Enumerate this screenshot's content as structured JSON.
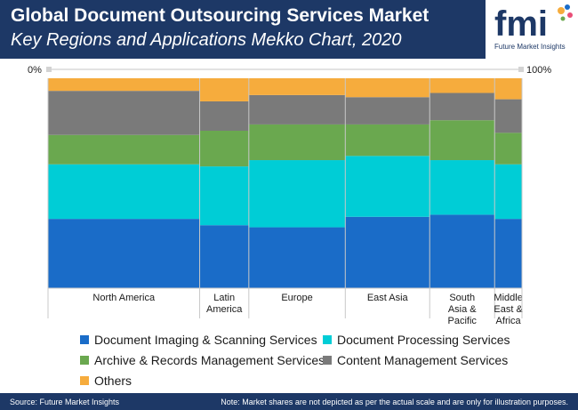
{
  "header": {
    "title": "Global Document Outsourcing Services Market",
    "subtitle": "Key Regions and Applications Mekko Chart, 2020"
  },
  "logo": {
    "letters": "fmi",
    "tagline": "Future Market Insights"
  },
  "footer": {
    "source": "Source: Future Market Insights",
    "note": "Note: Market shares are not depicted as per the actual scale and are only for illustration purposes."
  },
  "colors": {
    "header_bg": "#1d3866",
    "doc_imaging": "#1a6cc8",
    "doc_processing": "#00cdd6",
    "archive": "#6aa84f",
    "content_mgmt": "#7a7a7a",
    "others": "#f6ac3d"
  },
  "chart_data": {
    "type": "mekko",
    "axis": {
      "left_label": "0%",
      "right_label": "100%"
    },
    "categories": [
      "North America",
      "Latin America",
      "Europe",
      "East Asia",
      "South Asia & Pacific",
      "Middle East & Africa"
    ],
    "category_labels": [
      [
        "North America"
      ],
      [
        "Latin",
        "America"
      ],
      [
        "Europe"
      ],
      [
        "East Asia"
      ],
      [
        "South",
        "Asia &",
        "Pacific"
      ],
      [
        "Middle",
        "East &",
        "Africa"
      ]
    ],
    "widths_percent": [
      32.7,
      10.6,
      20.8,
      18.2,
      14.0,
      5.9
    ],
    "series": [
      {
        "name": "Document Imaging & Scanning Services",
        "values": [
          33,
          30,
          29,
          34,
          35,
          33
        ]
      },
      {
        "name": "Document Processing Services",
        "values": [
          26,
          28,
          32,
          29,
          26,
          26
        ]
      },
      {
        "name": "Archive & Records Management Services",
        "values": [
          14,
          17,
          17,
          15,
          19,
          15
        ]
      },
      {
        "name": "Content Management Services",
        "values": [
          21,
          14,
          14,
          13,
          13,
          16
        ]
      },
      {
        "name": "Others",
        "values": [
          6,
          11,
          8,
          9,
          7,
          10
        ]
      }
    ]
  },
  "legend": [
    {
      "label": "Document Imaging & Scanning Services",
      "color": "#1a6cc8"
    },
    {
      "label": "Document Processing Services",
      "color": "#00cdd6"
    },
    {
      "label": "Archive & Records Management Services",
      "color": "#6aa84f"
    },
    {
      "label": "Content Management Services",
      "color": "#7a7a7a"
    },
    {
      "label": "Others",
      "color": "#f6ac3d"
    }
  ]
}
